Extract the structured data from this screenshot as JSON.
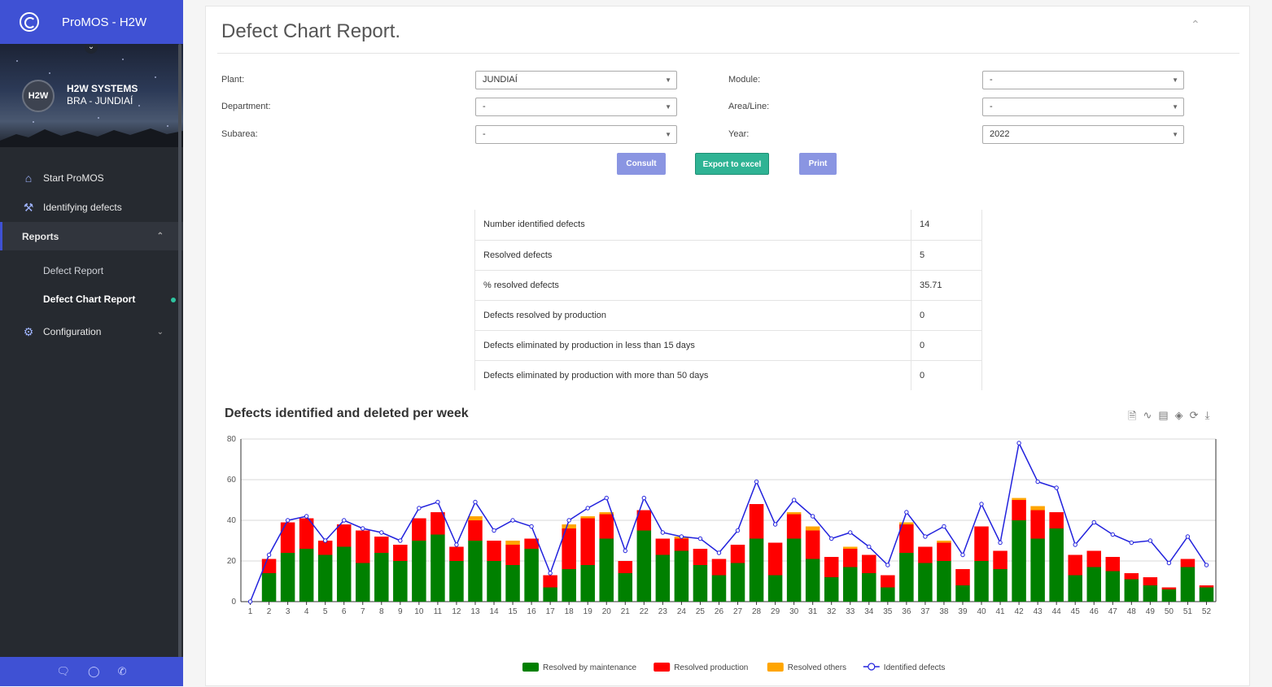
{
  "app": {
    "title": "ProMOS - H2W"
  },
  "profile": {
    "avatar": "H2W",
    "name": "H2W SYSTEMS",
    "location": "BRA - JUNDIAÍ"
  },
  "nav": {
    "start": "Start ProMOS",
    "identifying": "Identifying defects",
    "reports": "Reports",
    "sub": [
      "Defect Report",
      "Defect Chart Report"
    ],
    "configuration": "Configuration"
  },
  "page": {
    "title": "Defect Chart Report."
  },
  "filters": {
    "plant": {
      "label": "Plant:",
      "value": "JUNDIAÍ"
    },
    "module": {
      "label": "Module:",
      "value": "-"
    },
    "department": {
      "label": "Department:",
      "value": "-"
    },
    "area": {
      "label": "Area/Line:",
      "value": "-"
    },
    "subarea": {
      "label": "Subarea:",
      "value": "-"
    },
    "year": {
      "label": "Year:",
      "value": "2022"
    }
  },
  "buttons": {
    "consult": "Consult",
    "export": "Export to excel",
    "print": "Print"
  },
  "stats": [
    {
      "label": "Number identified defects",
      "value": "14"
    },
    {
      "label": "Resolved defects",
      "value": "5"
    },
    {
      "label": "% resolved defects",
      "value": "35.71"
    },
    {
      "label": "Defects resolved by production",
      "value": "0"
    },
    {
      "label": "Defects eliminated by production in less than 15 days",
      "value": "0"
    },
    {
      "label": "Defects eliminated by production with more than 50 days",
      "value": "0"
    }
  ],
  "chart_data": {
    "type": "bar",
    "title": "Defects identified and deleted per week",
    "stacked": true,
    "ylim": [
      0,
      80
    ],
    "yticks": [
      0,
      20,
      40,
      60,
      80
    ],
    "grid": true,
    "legend_position": "bottom",
    "categories": [
      "1",
      "2",
      "3",
      "4",
      "5",
      "6",
      "7",
      "8",
      "9",
      "10",
      "11",
      "12",
      "13",
      "14",
      "15",
      "16",
      "17",
      "18",
      "19",
      "20",
      "21",
      "22",
      "23",
      "24",
      "25",
      "26",
      "27",
      "28",
      "29",
      "30",
      "31",
      "32",
      "33",
      "34",
      "35",
      "36",
      "37",
      "38",
      "39",
      "40",
      "41",
      "42",
      "43",
      "44",
      "45",
      "46",
      "47",
      "48",
      "49",
      "50",
      "51",
      "52"
    ],
    "series": [
      {
        "name": "Resolved by maintenance",
        "type": "bar",
        "color": "#008000",
        "values": [
          0,
          14,
          24,
          26,
          23,
          27,
          19,
          24,
          20,
          30,
          33,
          20,
          30,
          20,
          18,
          26,
          7,
          16,
          18,
          31,
          14,
          35,
          23,
          25,
          18,
          13,
          19,
          31,
          13,
          31,
          21,
          12,
          17,
          14,
          7,
          24,
          19,
          20,
          8,
          20,
          16,
          40,
          31,
          36,
          13,
          17,
          15,
          11,
          8,
          6,
          17,
          7
        ]
      },
      {
        "name": "Resolved production",
        "type": "bar",
        "color": "#ff0000",
        "values": [
          0,
          7,
          15,
          15,
          7,
          11,
          16,
          8,
          8,
          11,
          11,
          7,
          10,
          10,
          10,
          5,
          6,
          20,
          23,
          12,
          6,
          10,
          8,
          6,
          8,
          8,
          9,
          17,
          16,
          12,
          14,
          10,
          9,
          9,
          6,
          14,
          8,
          9,
          8,
          17,
          9,
          10,
          14,
          8,
          10,
          8,
          7,
          3,
          4,
          1,
          4,
          1
        ]
      },
      {
        "name": "Resolved others",
        "type": "bar",
        "color": "#ffa500",
        "values": [
          0,
          0,
          0,
          0,
          0,
          0,
          0,
          0,
          0,
          0,
          0,
          0,
          2,
          0,
          2,
          0,
          0,
          2,
          1,
          1,
          0,
          0,
          0,
          1,
          0,
          0,
          0,
          0,
          0,
          1,
          2,
          0,
          1,
          0,
          0,
          1,
          0,
          1,
          0,
          0,
          0,
          1,
          2,
          0,
          0,
          0,
          0,
          0,
          0,
          0,
          0,
          0
        ]
      },
      {
        "name": "Identified defects",
        "type": "line",
        "color": "#2222dd",
        "values": [
          0,
          23,
          40,
          42,
          30,
          40,
          36,
          34,
          30,
          46,
          49,
          28,
          49,
          35,
          40,
          37,
          14,
          40,
          46,
          51,
          25,
          51,
          34,
          32,
          31,
          24,
          35,
          59,
          38,
          50,
          42,
          31,
          34,
          27,
          18,
          44,
          32,
          37,
          23,
          48,
          29,
          78,
          59,
          56,
          28,
          39,
          33,
          29,
          30,
          19,
          32,
          18
        ]
      }
    ]
  },
  "colors": {
    "brand": "#3f51d4",
    "sidebar": "#262a30",
    "accent_green": "#2fb394",
    "button_blue": "#8a95e2"
  },
  "icons": {
    "toolbox": [
      "data-view-icon",
      "line-chart-icon",
      "bar-chart-icon",
      "stack-icon",
      "restore-icon",
      "download-icon"
    ],
    "footer": [
      "chat-icon",
      "globe-icon",
      "phone-icon"
    ]
  }
}
